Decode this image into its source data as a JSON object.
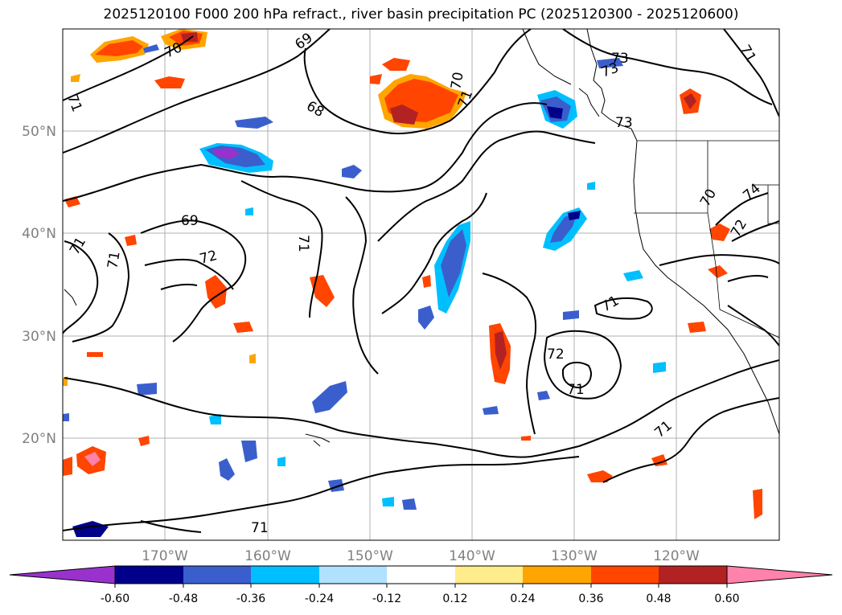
{
  "title": "2025120100 F000 200 hPa refract., river basin precipitation PC (2025120300 - 2025120600)",
  "map": {
    "lat_labels": [
      "50°N",
      "40°N",
      "30°N",
      "20°N"
    ],
    "lon_labels": [
      "170°W",
      "160°W",
      "150°W",
      "140°W",
      "130°W",
      "120°W"
    ],
    "lat_values": [
      50,
      40,
      30,
      20
    ],
    "lon_values": [
      -170,
      -160,
      -150,
      -140,
      -130,
      -120
    ],
    "grid_color": "#b0b0b0",
    "contour_labels": [
      "70",
      "69",
      "71",
      "73",
      "73",
      "73",
      "71",
      "70",
      "71",
      "68",
      "69",
      "71",
      "71",
      "72",
      "71",
      "70",
      "74",
      "72",
      "71",
      "72",
      "71"
    ]
  },
  "colorbar": {
    "ticks": [
      "-0.60",
      "-0.48",
      "-0.36",
      "-0.24",
      "-0.12",
      "0.12",
      "0.24",
      "0.36",
      "0.48",
      "0.60"
    ],
    "colors": [
      "#9932cc",
      "#00008b",
      "#3a5fcd",
      "#00bfff",
      "#b0e2ff",
      "#ffffff",
      "#ffec8b",
      "#ffa500",
      "#ff4500",
      "#b22222",
      "#ff82ab"
    ]
  }
}
